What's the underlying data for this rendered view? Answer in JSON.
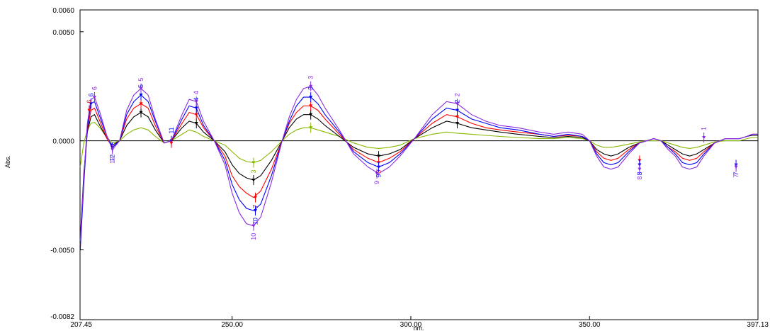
{
  "chart_data": {
    "type": "line",
    "xlabel": "nm.",
    "ylabel": "Abs.",
    "xlim": [
      207.45,
      397.13
    ],
    "ylim": [
      -0.0082,
      0.006
    ],
    "grid": false,
    "x_ticks": [
      {
        "value": 207.45,
        "label": "207.45"
      },
      {
        "value": 250,
        "label": "250.00"
      },
      {
        "value": 300,
        "label": "300.00"
      },
      {
        "value": 350,
        "label": "350.00"
      },
      {
        "value": 397.13,
        "label": "397.13"
      }
    ],
    "y_ticks": [
      {
        "value": 0.006,
        "label": "0.0060"
      },
      {
        "value": 0.005,
        "label": "0.0050"
      },
      {
        "value": 0.0,
        "label": "0.0000"
      },
      {
        "value": -0.005,
        "label": "-0.0050"
      },
      {
        "value": -0.0082,
        "label": "-0.0082"
      }
    ],
    "series": [
      {
        "color": "#88b800",
        "x": [
          207.5,
          208.5,
          209.5,
          210.5,
          211.5,
          213,
          215,
          216.5,
          218.5,
          220.5,
          222.5,
          224.5,
          226.5,
          228.5,
          231,
          233,
          236,
          238,
          240,
          242,
          245,
          248,
          250,
          252,
          254,
          256,
          258,
          261,
          264,
          266,
          268,
          270,
          272,
          274,
          276,
          280,
          284,
          288,
          291,
          294,
          297,
          301,
          306,
          310,
          313,
          317,
          321,
          325,
          330,
          336,
          340,
          344,
          348,
          350,
          352,
          354,
          356,
          358,
          361,
          364,
          366,
          368,
          370,
          372,
          374,
          376,
          378,
          380,
          382,
          385,
          388,
          390,
          392,
          394,
          395.5,
          396.5,
          397.1
        ],
        "y": [
          -0.0012,
          -0.0001,
          0.0005,
          0.0008,
          0.00085,
          0.0006,
          0.00015,
          -0.0001,
          0.0,
          0.0003,
          0.0005,
          0.0006,
          0.0005,
          0.0002,
          -0.0001,
          0.0,
          0.0003,
          0.0005,
          0.0004,
          0.0002,
          0.0,
          -0.0002,
          -0.0005,
          -0.0008,
          -0.00095,
          -0.001,
          -0.0009,
          -0.0005,
          0.0,
          0.0003,
          0.0005,
          0.0006,
          0.0006,
          0.0005,
          0.0004,
          0.0002,
          -0.0001,
          -0.0003,
          -0.00035,
          -0.0003,
          -0.0002,
          0.0001,
          0.0003,
          0.0004,
          0.00035,
          0.0003,
          0.00025,
          0.0002,
          0.00015,
          0.0001,
          0.0001,
          0.00015,
          0.0001,
          0.0,
          -0.0002,
          -0.0003,
          -0.0003,
          -0.00025,
          -0.00015,
          -5e-05,
          0.0,
          0.0,
          0.0,
          -0.0001,
          -0.0002,
          -0.0003,
          -0.00035,
          -0.0003,
          -0.0002,
          -5e-05,
          0.0,
          0.0,
          0.0,
          0.0001,
          0.00015,
          0.00015,
          0.00015
        ]
      },
      {
        "color": "#000000",
        "x": [
          207.5,
          208.5,
          209.5,
          210.5,
          211.5,
          213,
          215,
          216.5,
          218.5,
          220.5,
          222.5,
          224.5,
          226.5,
          228.5,
          231,
          233,
          236,
          238,
          240,
          242,
          245,
          248,
          250,
          252,
          254,
          256,
          258,
          261,
          264,
          266,
          268,
          270,
          272,
          274,
          276,
          280,
          284,
          288,
          291,
          294,
          297,
          301,
          306,
          310,
          313,
          317,
          321,
          325,
          330,
          336,
          340,
          344,
          348,
          350,
          352,
          354,
          356,
          358,
          361,
          364,
          366,
          368,
          370,
          372,
          374,
          376,
          378,
          380,
          382,
          385,
          388,
          390,
          392,
          394,
          395.5,
          396.5,
          397.1
        ],
        "y": [
          -0.0045,
          -0.0015,
          0.0004,
          0.0011,
          0.0012,
          0.0007,
          0.0001,
          -0.0002,
          0.0,
          0.0007,
          0.0011,
          0.0013,
          0.0011,
          0.0005,
          -0.0001,
          0.0,
          0.0006,
          0.0009,
          0.0008,
          0.0004,
          0.0,
          -0.0005,
          -0.0011,
          -0.0015,
          -0.0017,
          -0.0018,
          -0.0016,
          -0.0009,
          0.0,
          0.0006,
          0.001,
          0.0012,
          0.0012,
          0.001,
          0.0007,
          0.0002,
          -0.0003,
          -0.0006,
          -0.0007,
          -0.0006,
          -0.0004,
          0.0001,
          0.0006,
          0.0009,
          0.0008,
          0.0006,
          0.0005,
          0.0004,
          0.0003,
          0.0002,
          0.00015,
          0.0002,
          0.00015,
          0.0,
          -0.0004,
          -0.0006,
          -0.0007,
          -0.0006,
          -0.0003,
          -0.0001,
          0.0,
          0.0001,
          0.0,
          -0.0002,
          -0.0004,
          -0.0006,
          -0.0007,
          -0.0006,
          -0.0004,
          -0.0001,
          0.0001,
          0.0001,
          0.0001,
          0.0002,
          0.00025,
          0.00025,
          0.00025
        ]
      },
      {
        "color": "#ff0000",
        "x": [
          207.5,
          208.5,
          209.5,
          210.5,
          211.5,
          213,
          215,
          216.5,
          218.5,
          220.5,
          222.5,
          224.5,
          226.5,
          228.5,
          231,
          233,
          236,
          238,
          240,
          242,
          245,
          248,
          250,
          252,
          254,
          256,
          258,
          261,
          264,
          266,
          268,
          270,
          272,
          274,
          276,
          280,
          284,
          288,
          291,
          294,
          297,
          301,
          306,
          310,
          313,
          317,
          321,
          325,
          330,
          336,
          340,
          344,
          348,
          350,
          352,
          354,
          356,
          358,
          361,
          364,
          366,
          368,
          370,
          372,
          374,
          376,
          378,
          380,
          382,
          385,
          388,
          390,
          392,
          394,
          395.5,
          396.5,
          397.1
        ],
        "y": [
          -0.0048,
          -0.0018,
          0.0005,
          0.0014,
          0.0015,
          0.0009,
          0.0001,
          -0.0003,
          0.0,
          0.001,
          0.0015,
          0.0017,
          0.0015,
          0.0007,
          -0.0001,
          0.0,
          0.0008,
          0.0013,
          0.0012,
          0.0006,
          0.0,
          -0.0007,
          -0.0016,
          -0.0021,
          -0.0024,
          -0.0026,
          -0.0023,
          -0.0013,
          0.0,
          0.0008,
          0.0013,
          0.0016,
          0.0016,
          0.0014,
          0.001,
          0.0003,
          -0.0004,
          -0.0008,
          -0.001,
          -0.0008,
          -0.0005,
          0.0001,
          0.0008,
          0.0012,
          0.0011,
          0.0008,
          0.0006,
          0.0005,
          0.0004,
          0.0003,
          0.0002,
          0.00025,
          0.0002,
          0.0,
          -0.0005,
          -0.0008,
          -0.0009,
          -0.0008,
          -0.0004,
          -0.0001,
          0.0,
          0.0001,
          0.0,
          -0.0003,
          -0.0005,
          -0.0008,
          -0.0009,
          -0.0008,
          -0.0005,
          -0.0001,
          0.0001,
          0.0001,
          0.0001,
          0.0002,
          0.0003,
          0.0003,
          0.0003
        ]
      },
      {
        "color": "#0000ff",
        "x": [
          207.5,
          208.5,
          209.5,
          210.5,
          211.5,
          213,
          215,
          216.5,
          218.5,
          220.5,
          222.5,
          224.5,
          226.5,
          228.5,
          231,
          233,
          236,
          238,
          240,
          242,
          245,
          248,
          250,
          252,
          254,
          256,
          258,
          261,
          264,
          266,
          268,
          270,
          272,
          274,
          276,
          280,
          284,
          288,
          291,
          294,
          297,
          301,
          306,
          310,
          313,
          317,
          321,
          325,
          330,
          336,
          340,
          344,
          348,
          350,
          352,
          354,
          356,
          358,
          361,
          364,
          366,
          368,
          370,
          372,
          374,
          376,
          378,
          380,
          382,
          385,
          388,
          390,
          392,
          394,
          395.5,
          396.5,
          397.1
        ],
        "y": [
          -0.005,
          -0.002,
          0.0006,
          0.0017,
          0.0018,
          0.0011,
          0.0002,
          -0.0003,
          0.0,
          0.0012,
          0.0018,
          0.0021,
          0.0018,
          0.0009,
          -0.0001,
          0.0,
          0.001,
          0.0016,
          0.0015,
          0.0007,
          0.0,
          -0.0009,
          -0.002,
          -0.0027,
          -0.0031,
          -0.0032,
          -0.0029,
          -0.0016,
          0.0,
          0.0009,
          0.0016,
          0.002,
          0.002,
          0.0017,
          0.0012,
          0.0004,
          -0.0005,
          -0.001,
          -0.0012,
          -0.001,
          -0.0006,
          0.0001,
          0.001,
          0.0015,
          0.0014,
          0.001,
          0.0008,
          0.0006,
          0.0005,
          0.0003,
          0.0002,
          0.0003,
          0.0002,
          0.0,
          -0.0006,
          -0.001,
          -0.0011,
          -0.001,
          -0.0005,
          -0.0001,
          0.0,
          0.0001,
          0.0,
          -0.0003,
          -0.0006,
          -0.001,
          -0.0011,
          -0.001,
          -0.0006,
          -0.0001,
          0.0001,
          0.0001,
          0.0001,
          0.0002,
          0.0003,
          0.0003,
          0.0003
        ]
      },
      {
        "color": "#8a2be2",
        "x": [
          207.5,
          208.5,
          209.5,
          210.5,
          211.5,
          213,
          215,
          216.5,
          218.5,
          220.5,
          222.5,
          224.5,
          226.5,
          228.5,
          231,
          233,
          236,
          238,
          240,
          242,
          245,
          248,
          250,
          252,
          254,
          256,
          258,
          261,
          264,
          266,
          268,
          270,
          272,
          274,
          276,
          280,
          284,
          288,
          291,
          294,
          297,
          301,
          306,
          310,
          313,
          317,
          321,
          325,
          330,
          336,
          340,
          344,
          348,
          350,
          352,
          354,
          356,
          358,
          361,
          364,
          366,
          368,
          370,
          372,
          374,
          376,
          378,
          380,
          382,
          385,
          388,
          390,
          392,
          394,
          395.5,
          396.5,
          397.1
        ],
        "y": [
          -0.0046,
          -0.0017,
          0.0008,
          0.0019,
          0.002,
          0.0013,
          0.0002,
          -0.0004,
          0.0,
          0.0014,
          0.0021,
          0.0024,
          0.0021,
          0.001,
          -0.0001,
          0.0,
          0.0012,
          0.0019,
          0.0018,
          0.0009,
          0.0,
          -0.0011,
          -0.0024,
          -0.0033,
          -0.0038,
          -0.0039,
          -0.0035,
          -0.0019,
          0.0,
          0.0011,
          0.0019,
          0.0024,
          0.0025,
          0.0021,
          0.0015,
          0.0005,
          -0.0006,
          -0.0012,
          -0.0015,
          -0.0012,
          -0.0007,
          0.0001,
          0.0012,
          0.0018,
          0.0017,
          0.0012,
          0.0009,
          0.0007,
          0.0006,
          0.0004,
          0.0003,
          0.0004,
          0.0003,
          0.0,
          -0.0007,
          -0.0012,
          -0.0013,
          -0.0012,
          -0.0006,
          -0.0001,
          0.0,
          0.0001,
          0.0,
          -0.0004,
          -0.0007,
          -0.0012,
          -0.0013,
          -0.0012,
          -0.0007,
          -0.0001,
          0.0001,
          0.0001,
          0.0001,
          0.0002,
          0.0003,
          0.0003,
          0.0003
        ]
      }
    ],
    "reference_lines": [
      {
        "y": 0,
        "color": "#000000"
      }
    ],
    "peak_markers": [
      {
        "x": 210.5,
        "y": 0.0017,
        "label": "6",
        "color": "#0000ff"
      },
      {
        "x": 211.5,
        "y": 0.002,
        "label": "6",
        "color": "#8a2be2"
      },
      {
        "x": 210.0,
        "y": 0.0014,
        "label": "6",
        "color": "#ff0000"
      },
      {
        "x": 216.5,
        "y": -0.0003,
        "label": "12",
        "color": "#0000ff"
      },
      {
        "x": 216.5,
        "y": -0.0004,
        "label": "12",
        "color": "#8a2be2"
      },
      {
        "x": 224.5,
        "y": 0.0013,
        "label": "",
        "color": "#000000"
      },
      {
        "x": 224.5,
        "y": 0.0017,
        "label": "",
        "color": "#ff0000"
      },
      {
        "x": 224.5,
        "y": 0.0021,
        "label": "5",
        "color": "#0000ff"
      },
      {
        "x": 224.5,
        "y": 0.0024,
        "label": "5",
        "color": "#8a2be2"
      },
      {
        "x": 233,
        "y": 0.0,
        "label": "11",
        "color": "#0000ff"
      },
      {
        "x": 233,
        "y": -0.0001,
        "label": "",
        "color": "#ff0000"
      },
      {
        "x": 240,
        "y": 0.0008,
        "label": "",
        "color": "#000000"
      },
      {
        "x": 240,
        "y": 0.0012,
        "label": "",
        "color": "#ff0000"
      },
      {
        "x": 240,
        "y": 0.0015,
        "label": "4",
        "color": "#0000ff"
      },
      {
        "x": 240,
        "y": 0.0018,
        "label": "4",
        "color": "#8a2be2"
      },
      {
        "x": 256,
        "y": -0.001,
        "label": "3",
        "color": "#88b800"
      },
      {
        "x": 256,
        "y": -0.0018,
        "label": "",
        "color": "#000000"
      },
      {
        "x": 256.5,
        "y": -0.0026,
        "label": "7",
        "color": "#ff0000"
      },
      {
        "x": 256.5,
        "y": -0.0032,
        "label": "10",
        "color": "#0000ff"
      },
      {
        "x": 256,
        "y": -0.0039,
        "label": "10",
        "color": "#8a2be2"
      },
      {
        "x": 272,
        "y": 0.0006,
        "label": "",
        "color": "#88b800"
      },
      {
        "x": 272,
        "y": 0.0012,
        "label": "",
        "color": "#000000"
      },
      {
        "x": 272,
        "y": 0.0016,
        "label": "",
        "color": "#ff0000"
      },
      {
        "x": 272,
        "y": 0.002,
        "label": "3",
        "color": "#0000ff"
      },
      {
        "x": 272,
        "y": 0.0025,
        "label": "3",
        "color": "#8a2be2"
      },
      {
        "x": 291,
        "y": -0.0007,
        "label": "",
        "color": "#000000"
      },
      {
        "x": 291,
        "y": -0.001,
        "label": "9",
        "color": "#ff0000"
      },
      {
        "x": 291,
        "y": -0.0012,
        "label": "9",
        "color": "#0000ff"
      },
      {
        "x": 290.5,
        "y": -0.0015,
        "label": "9",
        "color": "#8a2be2"
      },
      {
        "x": 313,
        "y": 0.0008,
        "label": "",
        "color": "#000000"
      },
      {
        "x": 313,
        "y": 0.0011,
        "label": "",
        "color": "#ff0000"
      },
      {
        "x": 313,
        "y": 0.0014,
        "label": "2",
        "color": "#0000ff"
      },
      {
        "x": 313,
        "y": 0.0017,
        "label": "2",
        "color": "#8a2be2"
      },
      {
        "x": 364,
        "y": -0.0009,
        "label": "",
        "color": "#ff0000"
      },
      {
        "x": 364,
        "y": -0.0011,
        "label": "8",
        "color": "#0000ff"
      },
      {
        "x": 364,
        "y": -0.0013,
        "label": "8",
        "color": "#8a2be2"
      },
      {
        "x": 382,
        "y": 0.00015,
        "label": "1",
        "color": "#8a2be2"
      },
      {
        "x": 391,
        "y": -0.0011,
        "label": "7",
        "color": "#0000ff"
      },
      {
        "x": 391,
        "y": -0.0012,
        "label": "7",
        "color": "#8a2be2"
      }
    ]
  }
}
